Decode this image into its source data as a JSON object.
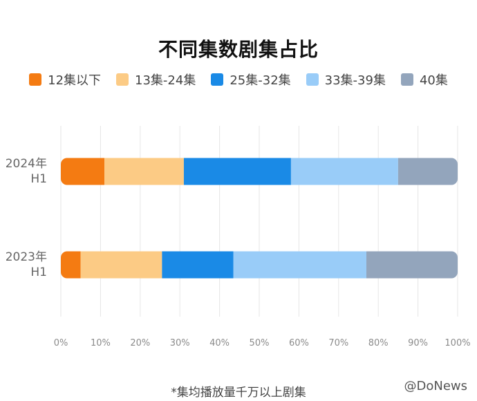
{
  "chart_data": {
    "type": "bar",
    "orientation": "horizontal",
    "stacked": true,
    "title": "不同集数剧集占比",
    "categories": [
      "2024年\nH1",
      "2023年\nH1"
    ],
    "series": [
      {
        "name": "12集以下",
        "values": [
          11,
          5
        ],
        "color": "#F47B12"
      },
      {
        "name": "13集-24集",
        "values": [
          20,
          20.5
        ],
        "color": "#FCCB85"
      },
      {
        "name": "25集-32集",
        "values": [
          27,
          18
        ],
        "color": "#1A8AE6"
      },
      {
        "name": "33集-39集",
        "values": [
          27,
          33.5
        ],
        "color": "#99CCF8"
      },
      {
        "name": "40集",
        "values": [
          15,
          23
        ],
        "color": "#93A5BC"
      }
    ],
    "x_ticks": [
      "0%",
      "10%",
      "20%",
      "30%",
      "40%",
      "50%",
      "60%",
      "70%",
      "80%",
      "90%",
      "100%"
    ],
    "xlim": [
      0,
      100
    ],
    "grid": true,
    "legend_position": "top"
  },
  "footnote": "*集均播放量千万以上剧集",
  "watermark": "@DoNews"
}
